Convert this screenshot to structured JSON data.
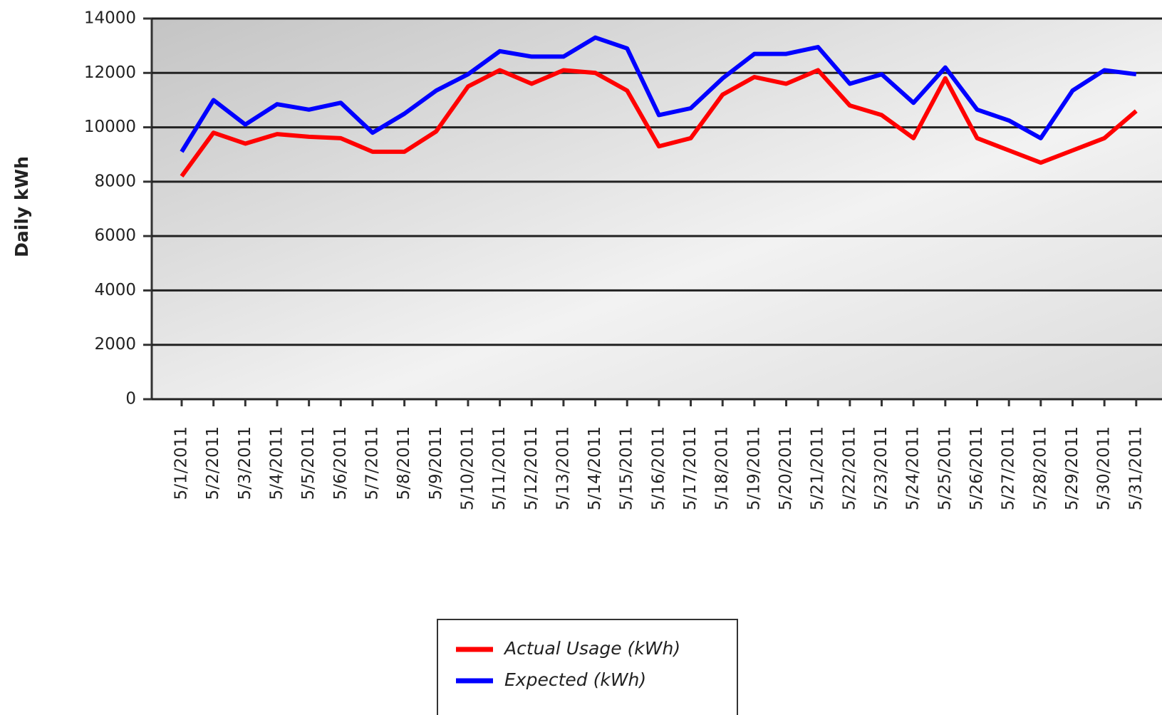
{
  "chart_data": {
    "type": "line",
    "y_label": "Daily kWh",
    "categories": [
      "5/1/2011",
      "5/2/2011",
      "5/3/2011",
      "5/4/2011",
      "5/5/2011",
      "5/6/2011",
      "5/7/2011",
      "5/8/2011",
      "5/9/2011",
      "5/10/2011",
      "5/11/2011",
      "5/12/2011",
      "5/13/2011",
      "5/14/2011",
      "5/15/2011",
      "5/16/2011",
      "5/17/2011",
      "5/18/2011",
      "5/19/2011",
      "5/20/2011",
      "5/21/2011",
      "5/22/2011",
      "5/23/2011",
      "5/24/2011",
      "5/25/2011",
      "5/26/2011",
      "5/27/2011",
      "5/28/2011",
      "5/29/2011",
      "5/30/2011",
      "5/31/2011"
    ],
    "series": [
      {
        "name": "Actual Usage (kWh)",
        "color": "#ff0000",
        "values": [
          8200,
          9800,
          9400,
          9750,
          9650,
          9600,
          9100,
          9100,
          9850,
          11500,
          12100,
          11600,
          12100,
          12000,
          11350,
          9300,
          9600,
          11200,
          11850,
          11600,
          12100,
          10800,
          10450,
          9600,
          11800,
          9600,
          9150,
          8700,
          9150,
          9600,
          10600
        ]
      },
      {
        "name": "Expected (kWh)",
        "color": "#0000ff",
        "values": [
          9100,
          11000,
          10100,
          10850,
          10650,
          10900,
          9800,
          10500,
          11350,
          11950,
          12800,
          12600,
          12600,
          13300,
          12900,
          10450,
          10700,
          11800,
          12700,
          12700,
          12950,
          11600,
          11950,
          10900,
          12200,
          10650,
          10250,
          9600,
          11350,
          12100,
          11950
        ]
      }
    ],
    "ylim": [
      0,
      14000
    ],
    "yticks": [
      0,
      2000,
      4000,
      6000,
      8000,
      10000,
      12000,
      14000
    ],
    "grid": true
  }
}
